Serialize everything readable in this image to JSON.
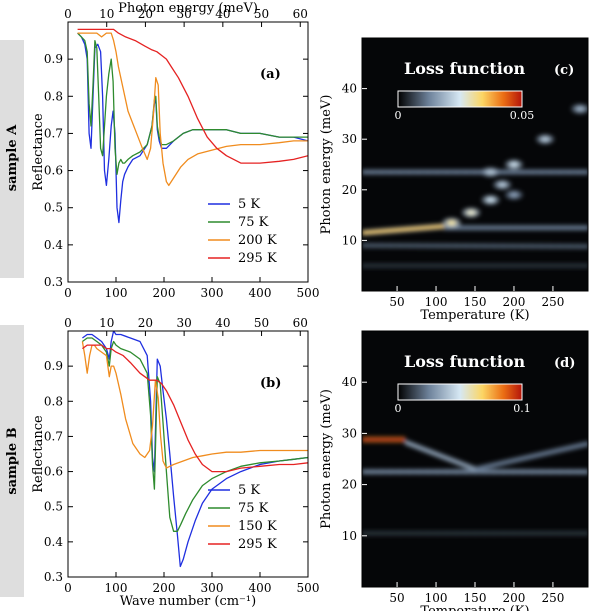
{
  "samples": [
    {
      "label": "sample A"
    },
    {
      "label": "sample B"
    }
  ],
  "chart_data": [
    {
      "id": "a",
      "panel_label": "(a)",
      "type": "line",
      "xlabel": "",
      "ylabel": "Reflectance",
      "top_xlabel": "Photon energy (meV)",
      "xlim": [
        0,
        500
      ],
      "ylim": [
        0.3,
        1.0
      ],
      "top_xlim": [
        0,
        62
      ],
      "xticks": [
        0,
        100,
        200,
        300,
        400,
        500
      ],
      "yticks": [
        0.3,
        0.4,
        0.5,
        0.6,
        0.7,
        0.8,
        0.9
      ],
      "top_xticks": [
        0,
        10,
        20,
        30,
        40,
        50,
        60
      ],
      "legend": "lower-right",
      "series": [
        {
          "name": "5 K",
          "color": "#1f2fe0",
          "x": [
            20,
            28,
            35,
            40,
            44,
            48,
            52,
            56,
            62,
            68,
            72,
            76,
            80,
            85,
            90,
            94,
            98,
            102,
            106,
            110,
            114,
            118,
            125,
            135,
            150,
            165,
            175,
            180,
            183,
            186,
            190,
            195,
            205,
            220,
            240,
            260,
            280,
            300,
            330,
            360,
            400,
            440,
            470,
            500
          ],
          "y": [
            0.97,
            0.96,
            0.94,
            0.9,
            0.7,
            0.66,
            0.8,
            0.93,
            0.94,
            0.92,
            0.8,
            0.6,
            0.56,
            0.63,
            0.72,
            0.76,
            0.7,
            0.5,
            0.46,
            0.52,
            0.57,
            0.59,
            0.61,
            0.63,
            0.64,
            0.67,
            0.72,
            0.78,
            0.79,
            0.71,
            0.68,
            0.66,
            0.66,
            0.68,
            0.7,
            0.71,
            0.71,
            0.71,
            0.71,
            0.7,
            0.7,
            0.69,
            0.69,
            0.68
          ]
        },
        {
          "name": "75 K",
          "color": "#2e8b2e",
          "x": [
            20,
            28,
            35,
            40,
            44,
            48,
            52,
            56,
            60,
            64,
            68,
            72,
            76,
            80,
            85,
            90,
            94,
            98,
            102,
            106,
            110,
            114,
            118,
            125,
            135,
            150,
            165,
            175,
            180,
            183,
            186,
            190,
            195,
            205,
            220,
            240,
            260,
            280,
            300,
            330,
            360,
            400,
            440,
            470,
            500
          ],
          "y": [
            0.97,
            0.96,
            0.95,
            0.92,
            0.78,
            0.72,
            0.83,
            0.95,
            0.93,
            0.8,
            0.66,
            0.64,
            0.72,
            0.8,
            0.86,
            0.9,
            0.84,
            0.66,
            0.59,
            0.62,
            0.63,
            0.62,
            0.62,
            0.63,
            0.64,
            0.65,
            0.67,
            0.72,
            0.79,
            0.8,
            0.72,
            0.69,
            0.67,
            0.67,
            0.68,
            0.7,
            0.71,
            0.71,
            0.71,
            0.71,
            0.7,
            0.7,
            0.69,
            0.69,
            0.69
          ]
        },
        {
          "name": "200 K",
          "color": "#f08c1e",
          "x": [
            20,
            30,
            40,
            50,
            60,
            70,
            80,
            90,
            95,
            100,
            105,
            115,
            125,
            140,
            155,
            165,
            172,
            178,
            183,
            188,
            192,
            198,
            205,
            210,
            220,
            235,
            250,
            270,
            300,
            330,
            360,
            400,
            440,
            470,
            500
          ],
          "y": [
            0.97,
            0.97,
            0.97,
            0.97,
            0.97,
            0.96,
            0.97,
            0.97,
            0.95,
            0.92,
            0.88,
            0.82,
            0.76,
            0.71,
            0.66,
            0.63,
            0.66,
            0.75,
            0.85,
            0.83,
            0.7,
            0.62,
            0.57,
            0.56,
            0.58,
            0.61,
            0.63,
            0.645,
            0.655,
            0.665,
            0.67,
            0.67,
            0.675,
            0.68,
            0.68
          ]
        },
        {
          "name": "295 K",
          "color": "#e52222",
          "x": [
            20,
            40,
            60,
            80,
            95,
            105,
            120,
            140,
            160,
            175,
            185,
            195,
            205,
            215,
            230,
            250,
            270,
            290,
            310,
            330,
            360,
            400,
            440,
            470,
            500
          ],
          "y": [
            0.98,
            0.98,
            0.98,
            0.98,
            0.98,
            0.97,
            0.96,
            0.95,
            0.935,
            0.925,
            0.92,
            0.91,
            0.9,
            0.88,
            0.85,
            0.8,
            0.74,
            0.69,
            0.66,
            0.64,
            0.62,
            0.62,
            0.625,
            0.63,
            0.64
          ]
        }
      ]
    },
    {
      "id": "b",
      "panel_label": "(b)",
      "type": "line",
      "xlabel": "Wave number (cm⁻¹)",
      "ylabel": "Reflectance",
      "top_xlabel": "",
      "xlim": [
        0,
        500
      ],
      "ylim": [
        0.3,
        1.0
      ],
      "top_xlim": [
        0,
        62
      ],
      "xticks": [
        0,
        100,
        200,
        300,
        400,
        500
      ],
      "yticks": [
        0.3,
        0.4,
        0.5,
        0.6,
        0.7,
        0.8,
        0.9
      ],
      "top_xticks": [
        0,
        10,
        20,
        30,
        40,
        50,
        60
      ],
      "legend": "lower-right",
      "series": [
        {
          "name": "5 K",
          "color": "#1f2fe0",
          "x": [
            30,
            40,
            50,
            60,
            70,
            80,
            86,
            90,
            95,
            100,
            110,
            130,
            150,
            165,
            172,
            176,
            180,
            186,
            192,
            198,
            205,
            212,
            220,
            228,
            234,
            240,
            250,
            265,
            280,
            300,
            330,
            360,
            400,
            440,
            470,
            500
          ],
          "y": [
            0.98,
            0.99,
            0.99,
            0.98,
            0.97,
            0.95,
            0.92,
            0.97,
            1.0,
            0.99,
            0.99,
            0.98,
            0.97,
            0.93,
            0.8,
            0.64,
            0.6,
            0.92,
            0.9,
            0.83,
            0.75,
            0.65,
            0.53,
            0.42,
            0.33,
            0.35,
            0.4,
            0.46,
            0.51,
            0.55,
            0.58,
            0.6,
            0.62,
            0.63,
            0.635,
            0.64
          ]
        },
        {
          "name": "75 K",
          "color": "#2e8b2e",
          "x": [
            30,
            40,
            50,
            60,
            70,
            80,
            86,
            90,
            95,
            100,
            110,
            130,
            150,
            165,
            172,
            176,
            180,
            186,
            192,
            198,
            205,
            212,
            220,
            228,
            235,
            245,
            260,
            280,
            300,
            330,
            360,
            400,
            440,
            470,
            500
          ],
          "y": [
            0.97,
            0.98,
            0.98,
            0.97,
            0.96,
            0.94,
            0.9,
            0.95,
            0.97,
            0.96,
            0.95,
            0.94,
            0.92,
            0.88,
            0.76,
            0.62,
            0.55,
            0.87,
            0.85,
            0.74,
            0.6,
            0.47,
            0.43,
            0.43,
            0.45,
            0.48,
            0.52,
            0.56,
            0.58,
            0.6,
            0.615,
            0.625,
            0.63,
            0.635,
            0.64
          ]
        },
        {
          "name": "150 K",
          "color": "#f08c1e",
          "x": [
            30,
            35,
            40,
            45,
            50,
            55,
            60,
            70,
            80,
            86,
            90,
            95,
            100,
            110,
            120,
            135,
            150,
            160,
            170,
            176,
            182,
            188,
            193,
            198,
            205,
            212,
            220,
            240,
            260,
            280,
            300,
            330,
            360,
            400,
            440,
            470,
            500
          ],
          "y": [
            0.97,
            0.93,
            0.88,
            0.93,
            0.96,
            0.96,
            0.95,
            0.94,
            0.93,
            0.87,
            0.9,
            0.9,
            0.88,
            0.82,
            0.75,
            0.68,
            0.65,
            0.64,
            0.66,
            0.73,
            0.86,
            0.81,
            0.7,
            0.63,
            0.61,
            0.615,
            0.62,
            0.63,
            0.64,
            0.645,
            0.65,
            0.655,
            0.655,
            0.66,
            0.66,
            0.66,
            0.66
          ]
        },
        {
          "name": "295 K",
          "color": "#e52222",
          "x": [
            30,
            40,
            50,
            60,
            70,
            80,
            90,
            100,
            115,
            130,
            150,
            170,
            185,
            195,
            205,
            220,
            235,
            250,
            265,
            280,
            300,
            330,
            360,
            400,
            440,
            470,
            500
          ],
          "y": [
            0.95,
            0.96,
            0.96,
            0.96,
            0.96,
            0.95,
            0.95,
            0.94,
            0.93,
            0.91,
            0.88,
            0.86,
            0.86,
            0.85,
            0.83,
            0.79,
            0.74,
            0.69,
            0.65,
            0.62,
            0.6,
            0.6,
            0.61,
            0.615,
            0.62,
            0.62,
            0.625
          ]
        }
      ]
    },
    {
      "id": "c",
      "panel_label": "(c)",
      "type": "heatmap",
      "title": "Loss function",
      "xlabel": "Temperature (K)",
      "ylabel": "Photon energy (meV)",
      "xlim": [
        5,
        295
      ],
      "ylim": [
        0,
        50
      ],
      "xticks": [
        50,
        100,
        150,
        200,
        250
      ],
      "yticks": [
        10,
        20,
        30,
        40
      ],
      "colorbar": {
        "min": 0,
        "max": 0.05,
        "min_label": "0",
        "max_label": "0.05"
      },
      "features": [
        {
          "kind": "band",
          "y_start": 11.5,
          "y_end": 12.8,
          "x_from": 5,
          "x_to": 110,
          "intensity": 0.7
        },
        {
          "kind": "band",
          "y_start": 12.5,
          "y_end": 12.5,
          "x_from": 110,
          "x_to": 295,
          "intensity": 0.25
        },
        {
          "kind": "band",
          "y_start": 23.5,
          "y_end": 23.5,
          "x_from": 5,
          "x_to": 295,
          "intensity": 0.25
        },
        {
          "kind": "band",
          "y_start": 9.0,
          "y_end": 8.8,
          "x_from": 5,
          "x_to": 295,
          "intensity": 0.18
        },
        {
          "kind": "band",
          "y_start": 5.0,
          "y_end": 5.0,
          "x_from": 5,
          "x_to": 295,
          "intensity": 0.1
        },
        {
          "kind": "spot",
          "x": 120,
          "y": 13.5,
          "intensity": 0.6
        },
        {
          "kind": "spot",
          "x": 145,
          "y": 15.5,
          "intensity": 0.55
        },
        {
          "kind": "spot",
          "x": 170,
          "y": 18.0,
          "intensity": 0.45
        },
        {
          "kind": "spot",
          "x": 185,
          "y": 21.0,
          "intensity": 0.4
        },
        {
          "kind": "spot",
          "x": 200,
          "y": 25.0,
          "intensity": 0.45
        },
        {
          "kind": "spot",
          "x": 170,
          "y": 23.5,
          "intensity": 0.4
        },
        {
          "kind": "spot",
          "x": 200,
          "y": 19.0,
          "intensity": 0.3
        },
        {
          "kind": "spot",
          "x": 240,
          "y": 30.0,
          "intensity": 0.4
        },
        {
          "kind": "spot",
          "x": 285,
          "y": 36.0,
          "intensity": 0.35
        }
      ]
    },
    {
      "id": "d",
      "panel_label": "(d)",
      "type": "heatmap",
      "title": "Loss function",
      "xlabel": "Temperature (K)",
      "ylabel": "Photon energy (meV)",
      "xlim": [
        5,
        295
      ],
      "ylim": [
        0,
        50
      ],
      "xticks": [
        50,
        100,
        150,
        200,
        250
      ],
      "yticks": [
        10,
        20,
        30,
        40
      ],
      "colorbar": {
        "min": 0,
        "max": 0.1,
        "min_label": "0",
        "max_label": "0.1"
      },
      "features": [
        {
          "kind": "band",
          "y_start": 28.8,
          "y_end": 28.8,
          "x_from": 5,
          "x_to": 60,
          "intensity": 1.0
        },
        {
          "kind": "band",
          "y_start": 28.3,
          "y_end": 23.0,
          "x_from": 60,
          "x_to": 150,
          "intensity": 0.35
        },
        {
          "kind": "band",
          "y_start": 22.5,
          "y_end": 22.5,
          "x_from": 5,
          "x_to": 295,
          "intensity": 0.28
        },
        {
          "kind": "band",
          "y_start": 23.0,
          "y_end": 28.0,
          "x_from": 150,
          "x_to": 295,
          "intensity": 0.25
        },
        {
          "kind": "band",
          "y_start": 10.5,
          "y_end": 10.5,
          "x_from": 5,
          "x_to": 295,
          "intensity": 0.1
        }
      ]
    }
  ]
}
